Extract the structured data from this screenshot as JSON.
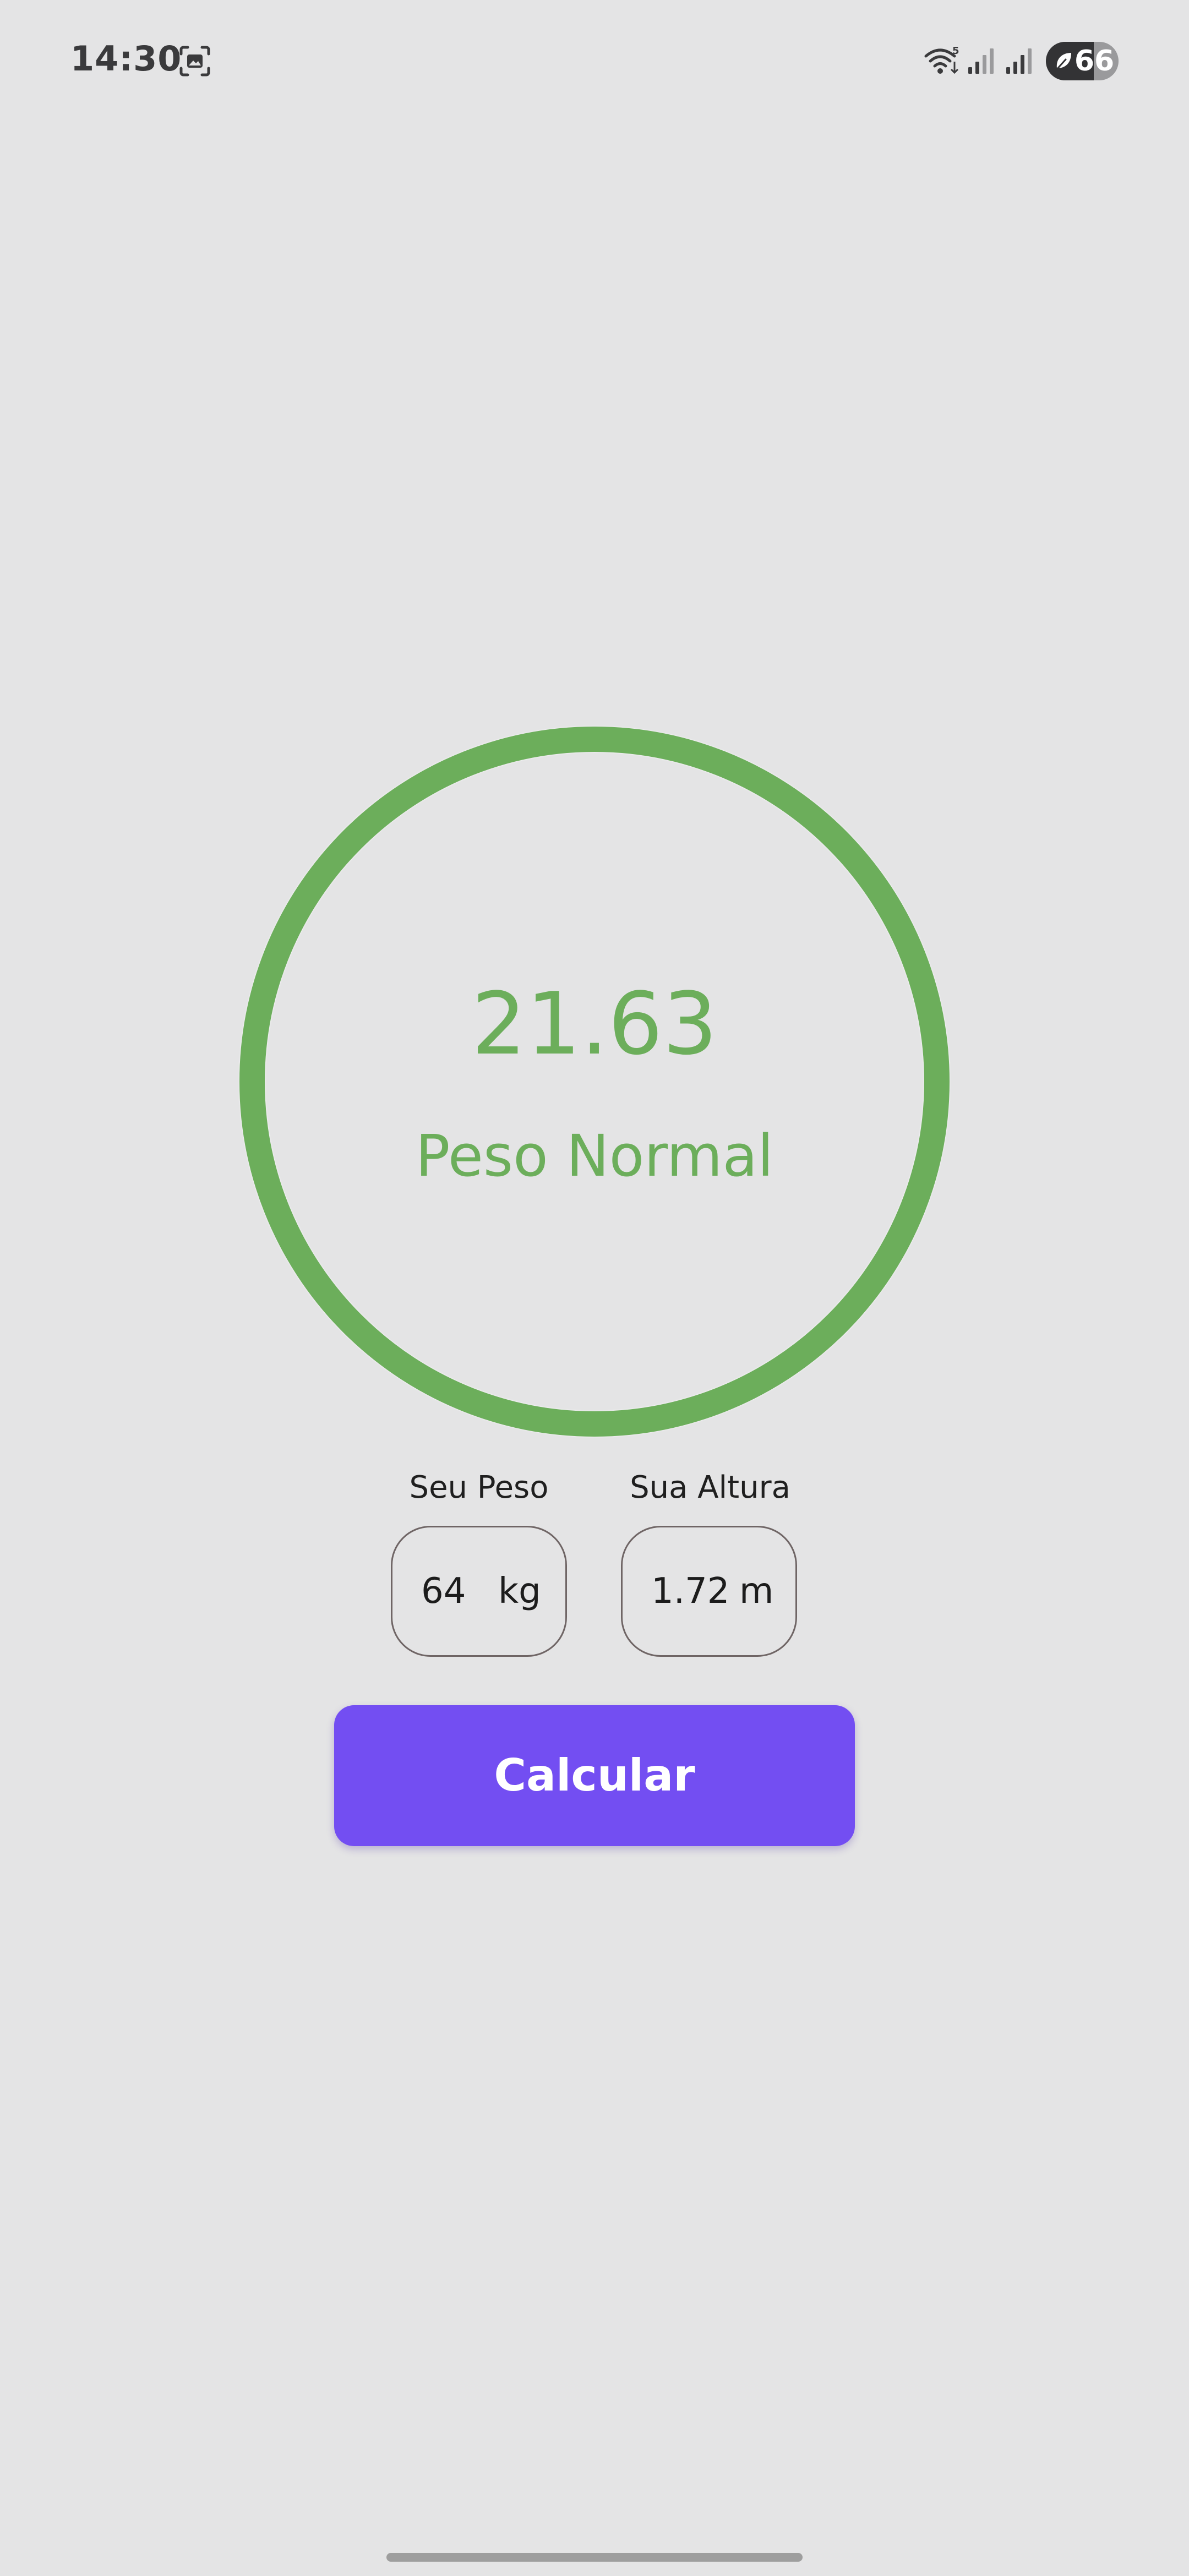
{
  "status_bar": {
    "time": "14:30",
    "battery_level": "66",
    "battery_fraction": 0.66,
    "icons": [
      "screenshot-icon",
      "wifi-icon",
      "signal-icon",
      "signal-icon",
      "battery-saver-leaf-icon"
    ]
  },
  "result": {
    "bmi_value": "21.63",
    "category": "Peso Normal",
    "ring_color": "#6cae5b"
  },
  "inputs": {
    "weight": {
      "label": "Seu Peso",
      "value": "64",
      "unit": "kg"
    },
    "height": {
      "label": "Sua Altura",
      "value": "1.72",
      "unit": "m"
    }
  },
  "button": {
    "label": "Calcular",
    "color": "#734ef2"
  }
}
